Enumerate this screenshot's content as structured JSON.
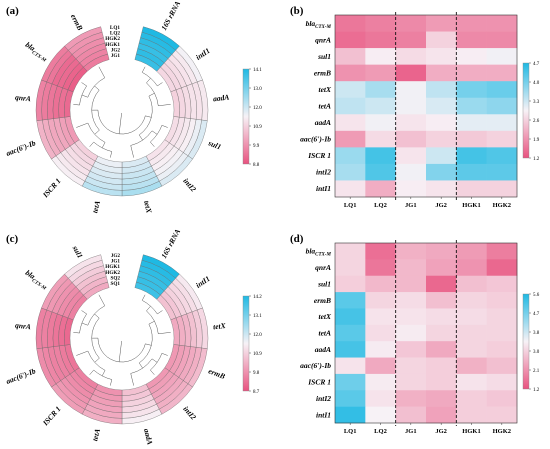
{
  "colorscale": {
    "low": "#e8527f",
    "mid": "#f7f2f6",
    "high": "#1fb9e3"
  },
  "panels": [
    {
      "label": "(a)",
      "colorbar_ticks": [
        "14.1",
        "13.0",
        "12.0",
        "10.9",
        "9.9",
        "8.8"
      ]
    },
    {
      "label": "(b)",
      "colorbar_ticks": [
        "4.7",
        "4.0",
        "3.3",
        "2.6",
        "1.9",
        "1.2"
      ]
    },
    {
      "label": "(c)",
      "colorbar_ticks": [
        "14.2",
        "13.1",
        "12.0",
        "10.9",
        "9.8",
        "8.7"
      ]
    },
    {
      "label": "(d)",
      "colorbar_ticks": [
        "5.6",
        "4.7",
        "3.8",
        "3.0",
        "2.1",
        "1.2"
      ]
    }
  ],
  "chart_data": [
    {
      "panel": "(a)",
      "type": "heatmap",
      "layout": "circular",
      "rings": [
        "LQ1",
        "LQ2",
        "HGK2",
        "HGK1",
        "JG2",
        "JG1"
      ],
      "genes": [
        "16S rRNA",
        "intI1",
        "aadA",
        "sul1",
        "intI2",
        "tetX",
        "tetA",
        "ISCR 1",
        "aac(6')-Ib",
        "qnrA",
        "blaCTX-M",
        "ermB"
      ],
      "values": [
        [
          14.1,
          11.5,
          11.3,
          11.8,
          11.8,
          12.4,
          12.2,
          11.4,
          10.4,
          9.6,
          9.5,
          10.0
        ],
        [
          14.0,
          11.3,
          11.2,
          11.6,
          11.6,
          12.2,
          12.0,
          11.3,
          10.3,
          9.5,
          9.4,
          9.9
        ],
        [
          13.9,
          11.2,
          11.2,
          11.4,
          11.5,
          12.1,
          11.9,
          11.2,
          10.2,
          9.4,
          9.2,
          9.8
        ],
        [
          13.8,
          11.1,
          11.1,
          11.3,
          11.4,
          12.0,
          11.8,
          11.1,
          10.2,
          9.3,
          9.2,
          9.7
        ],
        [
          13.9,
          11.0,
          11.0,
          11.2,
          11.3,
          11.9,
          11.7,
          11.0,
          10.1,
          9.3,
          9.1,
          9.6
        ],
        [
          13.8,
          11.0,
          10.9,
          11.1,
          11.2,
          11.8,
          11.6,
          10.9,
          10.0,
          9.2,
          9.0,
          9.5
        ]
      ],
      "colorbar_range": [
        8.8,
        14.1
      ]
    },
    {
      "panel": "(b)",
      "type": "heatmap",
      "x": [
        "LQ1",
        "LQ2",
        "JG1",
        "JG2",
        "HGK1",
        "HGK2"
      ],
      "y": [
        "blaCTX-M",
        "qnrA",
        "sul1",
        "ermB",
        "tetX",
        "tetA",
        "aadA",
        "aac(6')-Ib",
        "ISCR 1",
        "intI2",
        "intI1"
      ],
      "values": [
        [
          1.6,
          1.7,
          1.8,
          2.0,
          1.9,
          1.9
        ],
        [
          1.5,
          1.6,
          1.7,
          2.6,
          1.8,
          1.8
        ],
        [
          2.4,
          2.9,
          2.7,
          2.8,
          2.9,
          3.0
        ],
        [
          1.9,
          2.0,
          1.4,
          2.2,
          2.2,
          2.2
        ],
        [
          3.3,
          3.6,
          3.0,
          3.4,
          4.0,
          4.1
        ],
        [
          3.4,
          3.3,
          3.0,
          3.2,
          3.7,
          3.8
        ],
        [
          2.8,
          3.0,
          2.8,
          2.9,
          3.1,
          3.1
        ],
        [
          2.0,
          2.7,
          2.4,
          2.6,
          2.5,
          2.6
        ],
        [
          3.7,
          4.4,
          2.8,
          3.3,
          4.4,
          4.3
        ],
        [
          3.6,
          4.3,
          3.0,
          3.9,
          4.2,
          4.2
        ],
        [
          2.8,
          2.2,
          2.9,
          2.8,
          2.6,
          2.6
        ]
      ],
      "colorbar_range": [
        1.2,
        4.7
      ]
    },
    {
      "panel": "(c)",
      "type": "heatmap",
      "layout": "circular",
      "rings": [
        "JG2",
        "JG1",
        "HGK1",
        "HGK2",
        "SQ2",
        "SQ1"
      ],
      "genes": [
        "16S rRNA",
        "intI1",
        "tetX",
        "ermB",
        "intI2",
        "aadA",
        "tetA",
        "ISCR 1",
        "aac(6')-Ib",
        "qnrA",
        "blaCTX-M",
        "sul1"
      ],
      "values": [
        [
          14.2,
          11.3,
          11.0,
          10.5,
          10.4,
          11.4,
          10.3,
          10.0,
          9.7,
          9.5,
          10.0,
          11.2
        ],
        [
          14.1,
          11.1,
          10.8,
          10.3,
          10.3,
          11.2,
          10.2,
          9.9,
          9.6,
          9.5,
          9.9,
          11.0
        ],
        [
          14.0,
          11.0,
          10.6,
          10.2,
          10.2,
          11.0,
          10.1,
          9.8,
          9.5,
          9.4,
          9.8,
          10.8
        ],
        [
          13.9,
          10.9,
          10.4,
          10.1,
          10.1,
          10.9,
          10.0,
          9.7,
          9.5,
          9.3,
          9.7,
          10.6
        ],
        [
          13.9,
          10.7,
          10.3,
          10.0,
          10.0,
          10.7,
          9.9,
          9.6,
          9.4,
          9.2,
          9.6,
          10.4
        ],
        [
          13.8,
          10.6,
          10.2,
          9.9,
          9.9,
          10.6,
          9.8,
          9.5,
          9.3,
          9.1,
          9.5,
          10.2
        ]
      ],
      "colorbar_range": [
        8.7,
        14.2
      ]
    },
    {
      "panel": "(d)",
      "type": "heatmap",
      "x": [
        "LQ1",
        "LQ2",
        "JG1",
        "JG2",
        "HGK1",
        "HGK2"
      ],
      "y": [
        "blaCTX-M",
        "qnrA",
        "sul1",
        "ermB",
        "tetX",
        "tetA",
        "aadA",
        "aac(6')-Ib",
        "ISCR 1",
        "intI2",
        "intI1"
      ],
      "values": [
        [
          3.0,
          1.6,
          2.5,
          2.4,
          2.2,
          1.8
        ],
        [
          3.0,
          1.7,
          2.6,
          2.3,
          2.1,
          1.5
        ],
        [
          2.9,
          2.6,
          2.6,
          1.5,
          2.7,
          2.8
        ],
        [
          5.0,
          3.0,
          3.1,
          2.7,
          3.0,
          2.9
        ],
        [
          5.2,
          3.2,
          3.2,
          3.1,
          3.1,
          3.0
        ],
        [
          5.0,
          3.1,
          3.3,
          3.0,
          3.0,
          3.0
        ],
        [
          5.2,
          3.3,
          2.8,
          2.4,
          3.0,
          2.9
        ],
        [
          3.2,
          2.4,
          3.0,
          2.9,
          2.5,
          2.7
        ],
        [
          4.8,
          3.3,
          3.0,
          2.9,
          3.2,
          3.1
        ],
        [
          5.0,
          3.2,
          2.5,
          2.4,
          2.9,
          2.8
        ],
        [
          5.4,
          3.4,
          2.7,
          2.3,
          2.9,
          2.9
        ]
      ],
      "colorbar_range": [
        1.2,
        5.6
      ]
    }
  ]
}
